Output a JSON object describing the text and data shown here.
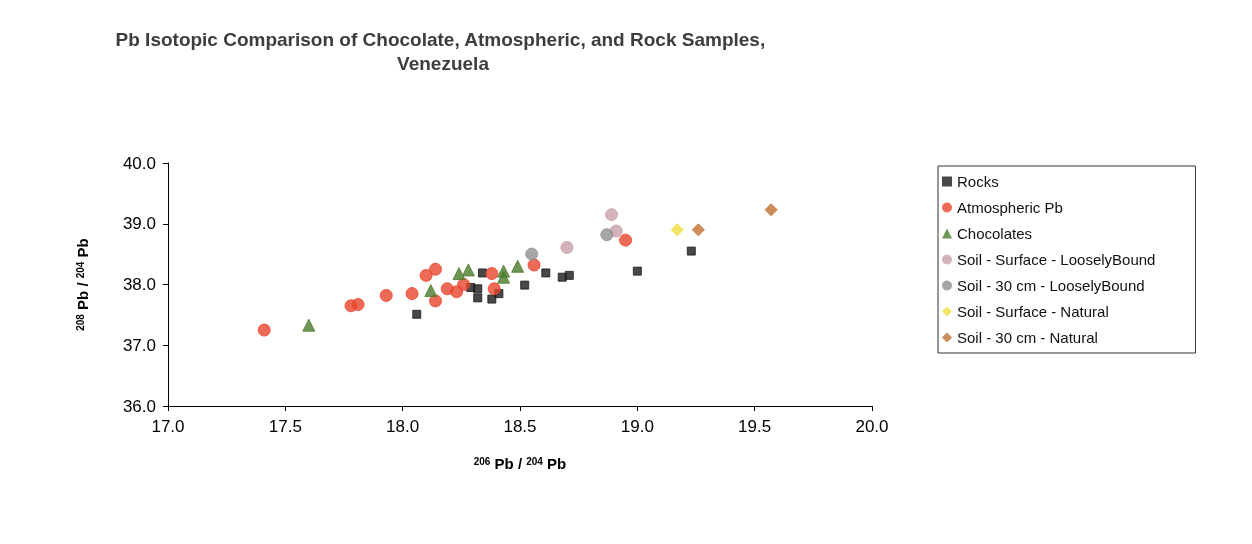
{
  "chart_data": {
    "type": "scatter",
    "title": "Pb Isotopic Comparison of Chocolate, Atmospheric, and Rock Samples, Venezuela",
    "xlabel": "$^{206}$ Pb / $^{204}$ Pb",
    "ylabel": "$^{208}$ Pb / $^{204}$ Pb",
    "xlim": [
      17.0,
      20.0
    ],
    "xticks": [
      {
        "value": 17.0,
        "label": "17.0"
      },
      {
        "value": 17.5,
        "label": "17.5"
      },
      {
        "value": 18.0,
        "label": "18.0"
      },
      {
        "value": 18.5,
        "label": "18.5"
      },
      {
        "value": 19.0,
        "label": "19.0"
      },
      {
        "value": 19.5,
        "label": "19.5"
      },
      {
        "value": 20.0,
        "label": "20.0"
      }
    ],
    "ylim": [
      36.0,
      40.0
    ],
    "yticks": [
      {
        "value": 36.0,
        "label": "36.0"
      },
      {
        "value": 37.0,
        "label": "37.0"
      },
      {
        "value": 38.0,
        "label": "38.0"
      },
      {
        "value": 39.0,
        "label": "39.0"
      },
      {
        "value": 40.0,
        "label": "40.0"
      }
    ],
    "grid": false,
    "legend": "right",
    "series": [
      {
        "name": "Rocks",
        "color": "#1a1a1a",
        "marker": "square",
        "x": [
          18.06,
          18.34,
          18.29,
          18.32,
          18.32,
          18.38,
          18.41,
          18.52,
          18.61,
          18.68,
          18.71,
          19.0,
          19.23
        ],
        "values": [
          37.51,
          38.19,
          37.95,
          37.93,
          37.78,
          37.76,
          37.85,
          37.99,
          38.19,
          38.12,
          38.15,
          38.22,
          38.55
        ]
      },
      {
        "name": "Atmospheric Pb",
        "color": "#e8452c",
        "marker": "circle",
        "x": [
          17.41,
          17.78,
          17.81,
          17.93,
          18.04,
          18.1,
          18.14,
          18.14,
          18.19,
          18.26,
          18.23,
          18.38,
          18.39,
          18.56,
          18.95
        ],
        "values": [
          37.25,
          37.65,
          37.67,
          37.82,
          37.85,
          38.15,
          38.25,
          37.73,
          37.93,
          38.0,
          37.88,
          38.18,
          37.93,
          38.32,
          38.73
        ]
      },
      {
        "name": "Chocolates",
        "color": "#4a7a2a",
        "marker": "triangle",
        "x": [
          17.6,
          18.12,
          18.24,
          18.28,
          18.43,
          18.43,
          18.49
        ],
        "values": [
          37.33,
          37.9,
          38.18,
          38.24,
          38.22,
          38.12,
          38.3
        ]
      },
      {
        "name": "Soil - Surface - LooselyBound",
        "color": "#c8a0a8",
        "marker": "circle",
        "x": [
          18.7,
          18.89,
          18.91
        ],
        "values": [
          38.61,
          39.15,
          38.88
        ]
      },
      {
        "name": "Soil - 30 cm - LooselyBound",
        "color": "#909090",
        "marker": "circle",
        "x": [
          18.55,
          18.87
        ],
        "values": [
          38.5,
          38.82
        ]
      },
      {
        "name": "Soil - Surface - Natural",
        "color": "#f0e040",
        "marker": "diamond",
        "x": [
          19.17
        ],
        "values": [
          38.9
        ]
      },
      {
        "name": "Soil - 30 cm - Natural",
        "color": "#c07030",
        "marker": "diamond",
        "x": [
          19.26,
          19.57
        ],
        "values": [
          38.9,
          39.23
        ]
      }
    ]
  }
}
